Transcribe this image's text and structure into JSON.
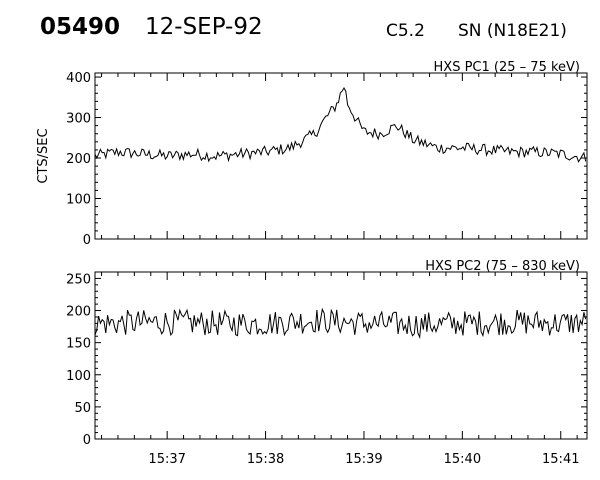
{
  "header": {
    "event_id": "05490",
    "date": "12-SEP-92",
    "flare_class": "C5.2",
    "location": "SN (N18E21)"
  },
  "chart_data": [
    {
      "type": "line",
      "title": "HXS PC1 (25 – 75 keV)",
      "ylabel": "CTS/SEC",
      "xlabel": "",
      "x_ticklabels": [
        "15:37",
        "15:38",
        "15:39",
        "15:40",
        "15:41"
      ],
      "y_ticks": [
        0,
        100,
        200,
        300,
        400
      ],
      "ylim": [
        0,
        410
      ],
      "xlim": [
        "15:36:16",
        "15:41:16"
      ],
      "series": [
        {
          "x": [
            "15:36:16",
            "15:36:30",
            "15:36:45",
            "15:37:00",
            "15:37:15",
            "15:37:30",
            "15:37:45",
            "15:38:00",
            "15:38:15",
            "15:38:30",
            "15:38:37",
            "15:38:43",
            "15:38:48",
            "15:38:50",
            "15:38:56",
            "15:39:00",
            "15:39:10",
            "15:39:20",
            "15:39:30",
            "15:39:45",
            "15:40:00",
            "15:40:15",
            "15:40:30",
            "15:40:45",
            "15:41:00",
            "15:41:16"
          ],
          "y": [
            205,
            215,
            210,
            205,
            210,
            205,
            210,
            215,
            225,
            260,
            300,
            330,
            380,
            335,
            290,
            265,
            260,
            280,
            245,
            225,
            225,
            220,
            215,
            215,
            210,
            200
          ]
        }
      ]
    },
    {
      "type": "line",
      "title": "HXS PC2 (75 – 830 keV)",
      "ylabel": "",
      "xlabel": "",
      "x_ticklabels": [
        "15:37",
        "15:38",
        "15:39",
        "15:40",
        "15:41"
      ],
      "y_ticks": [
        0,
        50,
        100,
        150,
        200,
        250
      ],
      "ylim": [
        0,
        260
      ],
      "xlim": [
        "15:36:16",
        "15:41:16"
      ],
      "series": [
        {
          "x": [
            "15:36:16",
            "15:37:00",
            "15:37:30",
            "15:38:00",
            "15:38:30",
            "15:39:00",
            "15:39:30",
            "15:40:00",
            "15:40:30",
            "15:41:00",
            "15:41:16"
          ],
          "y": [
            180,
            182,
            180,
            180,
            185,
            180,
            178,
            180,
            182,
            180,
            182
          ]
        }
      ]
    }
  ]
}
